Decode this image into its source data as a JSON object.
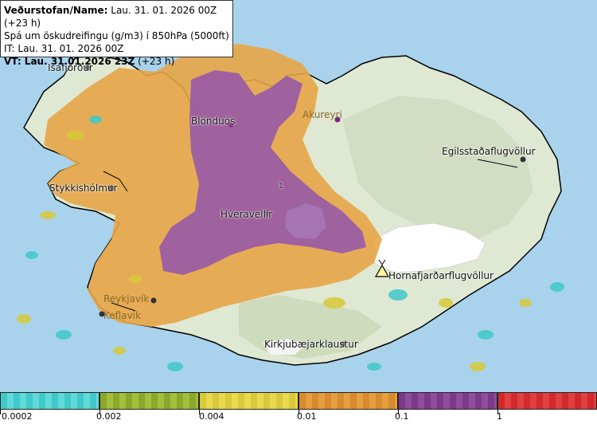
{
  "info": {
    "line1_bold": "Veðurstofan/Name:",
    "line1_rest": "Lau. 31. 01. 2026 00Z (+23 h)",
    "line2": "Spá um öskudreifingu (g/m3) í 850hPa (5000ft)",
    "line3": "IT: Lau. 31. 01. 2026 00Z",
    "line4_bold": "VT: Lau. 31.01.2026 23Z",
    "line4_rest": "(+23 h)"
  },
  "places": {
    "isafjordur": "Isafjörður",
    "blonduos": "Blönduós",
    "akureyri": "Akureyri",
    "egilsstadir": "Egilsstaðaflugvöllur",
    "stykkisholmur": "Stykkishólmur",
    "hveravellir": "Hveravellir",
    "hornafjordur": "Hornafjarðarflugvöllur",
    "reykjavik": "Reykjavík",
    "keflavik": "Keflavík",
    "kirkjubaejarklaustur": "Kirkjubæjarklaustur",
    "small_mark": "1"
  },
  "legend": {
    "ticks": [
      "0.0002",
      "0.002",
      "0.004",
      "0.01",
      "0.1",
      "1"
    ],
    "colors": [
      "#3fc9c9",
      "#8aa92b",
      "#d8c93a",
      "#d88a2c",
      "#7a3a8a",
      "#d12a2a"
    ]
  }
}
